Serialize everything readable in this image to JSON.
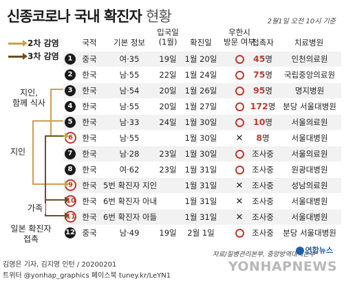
{
  "title": {
    "main": "신종코로나 국내 확진자",
    "suffix": "현황"
  },
  "date": "2월1일 오전 10시 기준",
  "legend": [
    {
      "label": "2차 감염",
      "color": "#c9a24a"
    },
    {
      "label": "3차 감염",
      "color": "#6b4f1e"
    }
  ],
  "headers": {
    "nationality": "국적",
    "basic": "기본 정보",
    "entry_line1": "입국일",
    "entry_line2": "(1월)",
    "confirm": "확진일",
    "wuhan_line1": "우한시",
    "wuhan_line2": "방문 여부",
    "contacts": "접촉자",
    "hospital": "치료병원"
  },
  "rows": [
    {
      "no": "1",
      "style": "dark",
      "nationality": "중국",
      "info": "여·35",
      "entry": "19일",
      "confirm": "1월 20일",
      "wuhan": "o",
      "contacts_num": "45",
      "contacts_unit": "명",
      "hospital": "인천의료원"
    },
    {
      "no": "2",
      "style": "dark",
      "nationality": "한국",
      "info": "남·55",
      "entry": "22일",
      "confirm": "1월 24일",
      "wuhan": "o",
      "contacts_num": "75",
      "contacts_unit": "명",
      "hospital": "국립중앙의료원"
    },
    {
      "no": "3",
      "style": "dark",
      "nationality": "한국",
      "info": "남·54",
      "entry": "20일",
      "confirm": "1월 26일",
      "wuhan": "o",
      "contacts_num": "95",
      "contacts_unit": "명",
      "hospital": "명지병원"
    },
    {
      "no": "4",
      "style": "dark",
      "nationality": "한국",
      "info": "남·55",
      "entry": "20일",
      "confirm": "1월 27일",
      "wuhan": "o",
      "contacts_num": "172",
      "contacts_unit": "명",
      "hospital": "분당 서울대병원"
    },
    {
      "no": "5",
      "style": "dark",
      "nationality": "한국",
      "info": "남·33",
      "entry": "24일",
      "confirm": "1월 30일",
      "wuhan": "o",
      "contacts_num": "10",
      "contacts_unit": "명",
      "hospital": "서울의료원"
    },
    {
      "no": "6",
      "style": "red",
      "nationality": "한국",
      "info": "남·55",
      "entry": "",
      "confirm": "1월 30일",
      "wuhan": "x",
      "contacts_num": "8",
      "contacts_unit": "명",
      "hospital": "서울대병원"
    },
    {
      "no": "7",
      "style": "dark",
      "nationality": "한국",
      "info": "남·28",
      "entry": "23일",
      "confirm": "1월 30일",
      "wuhan": "o",
      "contacts_num": "",
      "contacts_unit": "조사중",
      "hospital": "서울의료원"
    },
    {
      "no": "8",
      "style": "dark",
      "nationality": "한국",
      "info": "여·62",
      "entry": "23일",
      "confirm": "1월 31일",
      "wuhan": "o",
      "contacts_num": "",
      "contacts_unit": "조사중",
      "hospital": "원광대병원"
    },
    {
      "no": "9",
      "style": "red",
      "nationality": "한국",
      "info": "5번 확진자 지인",
      "entry": "",
      "confirm": "1월 31일",
      "wuhan": "x",
      "contacts_num": "",
      "contacts_unit": "조사중",
      "hospital": "성남의료원"
    },
    {
      "no": "10",
      "style": "red",
      "nationality": "한국",
      "info": "6번 확진자 아내",
      "entry": "",
      "confirm": "1월 31일",
      "wuhan": "x",
      "contacts_num": "",
      "contacts_unit": "조사중",
      "hospital": "서울대병원"
    },
    {
      "no": "11",
      "style": "red",
      "nationality": "한국",
      "info": "6번 확진자 아들",
      "entry": "",
      "confirm": "1월 31일",
      "wuhan": "x",
      "contacts_num": "",
      "contacts_unit": "조사중",
      "hospital": "서울대병원"
    },
    {
      "no": "12",
      "style": "dark",
      "nationality": "중국",
      "info": "남·49",
      "entry": "19일",
      "confirm": "2월 1일",
      "wuhan": "o",
      "contacts_num": "",
      "contacts_unit": "조사중",
      "hospital": "분당 서울대병원"
    }
  ],
  "side_labels": {
    "acquaintance_meal_line1": "지인,",
    "acquaintance_meal_line2": "함께 식사",
    "acquaintance": "지인",
    "family": "가족",
    "japan_line1": "일본 확진자",
    "japan_line2": "접촉"
  },
  "source": "자료/질병관리본부, 중앙방역대책본부",
  "credits": "김영은 기자, 김지영 인턴 / 20200201",
  "social": "트위터 @yonhap_graphics  페이스북 tuney.kr/LeYN1",
  "watermark": "YONHAPNEWS",
  "watermark_logo": "연합뉴스"
}
